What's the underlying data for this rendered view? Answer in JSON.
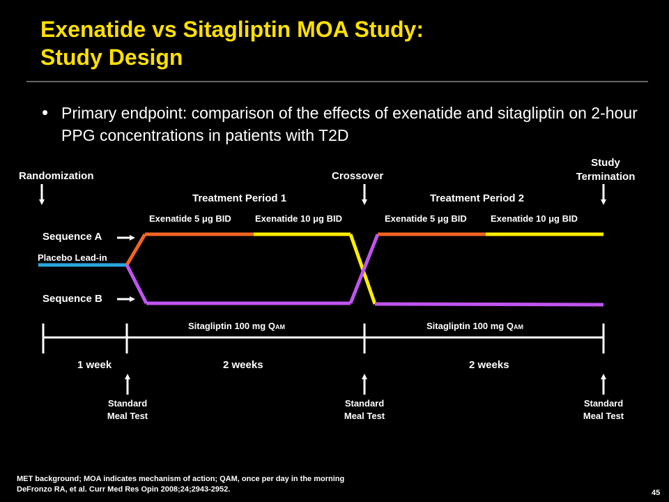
{
  "title_line1": "Exenatide vs Sitagliptin MOA Study:",
  "title_line2": "Study Design",
  "bullet": "Primary endpoint: comparison of the effects of exenatide and sitagliptin on 2-hour PPG concentrations in patients with T2D",
  "labels": {
    "randomization": "Randomization",
    "crossover": "Crossover",
    "study_termination_1": "Study",
    "study_termination_2": "Termination",
    "treatment_period_1": "Treatment Period 1",
    "treatment_period_2": "Treatment Period 2",
    "exenatide_5": "Exenatide 5 μg BID",
    "exenatide_10": "Exenatide 10 μg BID",
    "sequence_a": "Sequence A",
    "sequence_b": "Sequence B",
    "placebo_lead_in": "Placebo Lead-in",
    "sitagliptin": "Sitagliptin 100 mg Q",
    "sitagliptin_sub": "AM",
    "week_1": "1 week",
    "weeks_2a": "2 weeks",
    "weeks_2b": "2 weeks",
    "meal_test_1": "Standard",
    "meal_test_2": "Meal Test"
  },
  "colors": {
    "title": "#ffe000",
    "exenatide_5": "#f26522",
    "exenatide_10": "#ffee00",
    "sitagliptin": "#c054f0",
    "placebo": "#2ba6de"
  },
  "footnote_1": "MET background; MOA indicates mechanism of action; QAM, once per day in the morning",
  "footnote_2": "DeFronzo RA, et al. Curr Med Res Opin 2008;24;2943-2952.",
  "page_number": "45"
}
